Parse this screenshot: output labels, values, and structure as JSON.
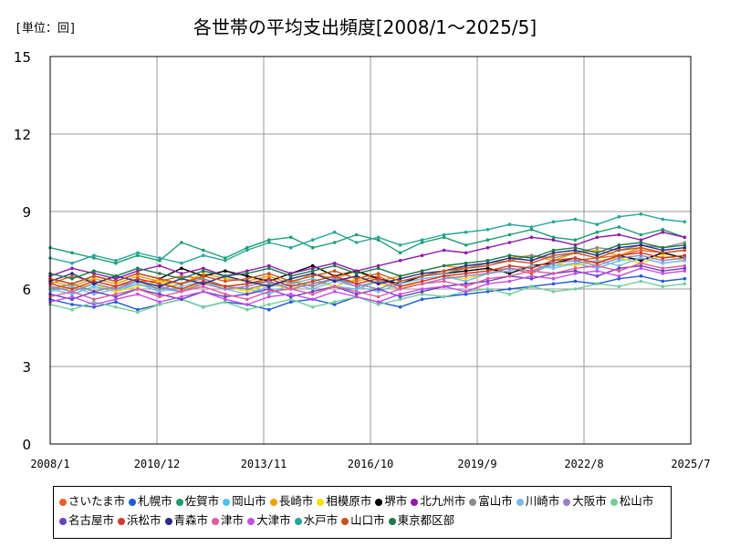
{
  "unit_label": "[単位：回]",
  "chart_data": {
    "type": "line",
    "title": "各世帯の平均支出頻度[2008/1～2025/5]",
    "xlabel": "",
    "ylabel": "",
    "ylim": [
      0,
      15
    ],
    "yticks": [
      0,
      3,
      6,
      9,
      12,
      15
    ],
    "x_range": [
      "2008/1",
      "2025/7"
    ],
    "xticks": [
      "2008/1",
      "2010/12",
      "2013/11",
      "2016/10",
      "2019/9",
      "2022/8",
      "2025/7"
    ],
    "grid": true,
    "legend_position": "bottom",
    "x_granularity": "monthly",
    "series": [
      {
        "name": "さいたま市",
        "color": "#e8622a",
        "values": [
          6.2,
          6.5,
          6.3,
          6.1,
          6.3,
          6.3,
          6.5,
          6.4,
          6.1,
          6.2,
          6.3,
          6.0,
          6.2,
          6.4,
          6.3,
          6.5,
          6.1,
          6.3,
          6.5,
          6.6,
          6.7,
          6.8,
          6.6,
          7.0,
          7.1,
          7.2,
          7.3,
          7.5,
          7.4,
          7.2
        ]
      },
      {
        "name": "札幌市",
        "color": "#1f5bd6",
        "values": [
          5.6,
          5.4,
          5.3,
          5.5,
          5.2,
          5.4,
          5.6,
          5.3,
          5.5,
          5.4,
          5.2,
          5.5,
          5.6,
          5.4,
          5.7,
          5.5,
          5.3,
          5.6,
          5.7,
          5.8,
          5.9,
          6.0,
          6.1,
          6.2,
          6.3,
          6.2,
          6.4,
          6.5,
          6.3,
          6.4
        ]
      },
      {
        "name": "佐賀市",
        "color": "#1a9e6e",
        "values": [
          7.6,
          7.4,
          7.2,
          7.0,
          7.3,
          7.1,
          7.8,
          7.5,
          7.2,
          7.6,
          7.9,
          8.0,
          7.6,
          7.8,
          8.1,
          7.9,
          7.4,
          7.8,
          8.0,
          7.7,
          7.9,
          8.1,
          8.3,
          8.0,
          7.9,
          8.2,
          8.4,
          8.1,
          8.3,
          8.0
        ]
      },
      {
        "name": "岡山市",
        "color": "#4fc3e8",
        "values": [
          6.0,
          5.8,
          6.1,
          5.9,
          6.2,
          6.0,
          5.9,
          6.3,
          6.1,
          6.0,
          5.8,
          6.2,
          6.4,
          6.1,
          6.0,
          6.3,
          6.2,
          6.4,
          6.5,
          6.3,
          6.6,
          6.8,
          6.7,
          6.9,
          7.0,
          6.8,
          7.1,
          7.2,
          7.0,
          7.1
        ]
      },
      {
        "name": "長崎市",
        "color": "#f0a000",
        "values": [
          6.3,
          6.1,
          6.4,
          6.2,
          6.5,
          6.3,
          6.2,
          6.6,
          6.4,
          6.3,
          6.5,
          6.2,
          6.6,
          6.4,
          6.7,
          6.3,
          6.5,
          6.7,
          6.9,
          6.8,
          7.0,
          7.2,
          7.3,
          7.1,
          7.4,
          7.5,
          7.3,
          7.6,
          7.4,
          7.5
        ]
      },
      {
        "name": "相模原市",
        "color": "#f5e000",
        "values": [
          6.1,
          6.0,
          6.2,
          5.9,
          6.1,
          6.3,
          6.0,
          6.2,
          6.1,
          5.9,
          6.2,
          6.0,
          6.3,
          6.1,
          6.4,
          6.2,
          6.0,
          6.3,
          6.5,
          6.4,
          6.6,
          6.8,
          6.7,
          7.0,
          6.9,
          7.1,
          7.2,
          7.0,
          7.3,
          7.1
        ]
      },
      {
        "name": "堺市",
        "color": "#000000",
        "values": [
          6.4,
          6.2,
          6.5,
          6.3,
          6.6,
          6.4,
          6.8,
          6.5,
          6.7,
          6.5,
          6.3,
          6.6,
          6.9,
          6.5,
          6.7,
          6.4,
          6.2,
          6.5,
          6.6,
          6.7,
          6.8,
          6.6,
          6.9,
          7.0,
          7.2,
          7.0,
          7.3,
          7.1,
          7.4,
          7.2
        ]
      },
      {
        "name": "北九州市",
        "color": "#8e1aa8",
        "values": [
          6.5,
          6.8,
          6.6,
          6.4,
          6.7,
          6.9,
          6.6,
          6.8,
          6.5,
          6.7,
          6.9,
          6.6,
          6.8,
          7.0,
          6.7,
          6.9,
          7.1,
          7.3,
          7.5,
          7.4,
          7.6,
          7.8,
          8.0,
          7.9,
          7.7,
          8.0,
          8.1,
          7.9,
          8.2,
          8.0
        ]
      },
      {
        "name": "富山市",
        "color": "#8c8c8c",
        "values": [
          6.0,
          6.2,
          5.9,
          6.1,
          6.3,
          6.0,
          6.2,
          6.4,
          6.1,
          6.0,
          6.2,
          6.3,
          6.1,
          6.4,
          6.2,
          6.0,
          6.3,
          6.5,
          6.6,
          6.8,
          7.0,
          7.1,
          7.3,
          7.2,
          7.4,
          7.6,
          7.5,
          7.7,
          7.6,
          7.8
        ]
      },
      {
        "name": "川崎市",
        "color": "#7fb8e8",
        "values": [
          5.9,
          6.1,
          5.8,
          6.0,
          6.2,
          5.9,
          6.1,
          6.3,
          6.0,
          5.8,
          6.1,
          6.2,
          6.0,
          6.3,
          6.1,
          5.9,
          6.2,
          6.4,
          6.5,
          6.3,
          6.6,
          6.7,
          6.9,
          6.8,
          7.0,
          7.1,
          6.9,
          7.2,
          7.0,
          7.1
        ]
      },
      {
        "name": "大阪市",
        "color": "#9a7fc2",
        "values": [
          6.1,
          5.9,
          6.2,
          6.0,
          6.3,
          6.1,
          5.9,
          6.2,
          6.0,
          6.1,
          6.3,
          6.0,
          6.2,
          6.4,
          6.1,
          6.3,
          6.0,
          6.2,
          6.4,
          6.5,
          6.6,
          6.8,
          6.7,
          7.0,
          7.1,
          6.9,
          7.2,
          7.3,
          7.1,
          7.2
        ]
      },
      {
        "name": "松山市",
        "color": "#6fcf97",
        "values": [
          5.4,
          5.2,
          5.5,
          5.3,
          5.1,
          5.4,
          5.6,
          5.3,
          5.5,
          5.2,
          5.4,
          5.6,
          5.3,
          5.5,
          5.7,
          5.4,
          5.6,
          5.8,
          5.7,
          5.9,
          6.0,
          5.8,
          6.1,
          5.9,
          6.0,
          6.2,
          6.1,
          6.3,
          6.1,
          6.2
        ]
      },
      {
        "name": "名古屋市",
        "color": "#6a3fc9",
        "values": [
          5.8,
          5.6,
          5.9,
          5.7,
          6.0,
          5.8,
          5.6,
          5.9,
          5.7,
          5.8,
          6.0,
          5.7,
          5.9,
          6.1,
          5.8,
          6.0,
          5.7,
          5.9,
          6.1,
          6.2,
          6.3,
          6.5,
          6.4,
          6.6,
          6.7,
          6.5,
          6.8,
          6.9,
          6.7,
          6.8
        ]
      },
      {
        "name": "浜松市",
        "color": "#d13b2e",
        "values": [
          6.2,
          6.0,
          6.3,
          6.1,
          6.4,
          6.2,
          6.0,
          6.3,
          6.1,
          6.2,
          6.4,
          6.1,
          6.3,
          6.5,
          6.2,
          6.4,
          6.1,
          6.3,
          6.5,
          6.6,
          6.7,
          6.9,
          6.8,
          7.1,
          7.2,
          7.0,
          7.3,
          7.4,
          7.2,
          7.3
        ]
      },
      {
        "name": "青森市",
        "color": "#2a2a8c",
        "values": [
          6.3,
          6.6,
          6.2,
          6.5,
          6.3,
          6.1,
          6.4,
          6.2,
          6.5,
          6.3,
          6.1,
          6.4,
          6.6,
          6.3,
          6.5,
          6.2,
          6.4,
          6.6,
          6.7,
          6.9,
          7.0,
          7.2,
          7.1,
          7.4,
          7.5,
          7.3,
          7.6,
          7.7,
          7.5,
          7.6
        ]
      },
      {
        "name": "津市",
        "color": "#e05aa0",
        "values": [
          5.7,
          5.9,
          5.6,
          5.8,
          6.0,
          5.7,
          5.9,
          6.1,
          5.8,
          5.6,
          5.9,
          6.0,
          5.8,
          6.1,
          5.9,
          5.7,
          6.0,
          6.2,
          6.3,
          6.1,
          6.4,
          6.5,
          6.7,
          6.6,
          6.8,
          6.9,
          6.7,
          7.0,
          6.8,
          6.9
        ]
      },
      {
        "name": "大津市",
        "color": "#c44fe8",
        "values": [
          5.5,
          5.7,
          5.4,
          5.6,
          5.8,
          5.5,
          5.7,
          5.9,
          5.6,
          5.4,
          5.7,
          5.8,
          5.6,
          5.9,
          5.7,
          5.5,
          5.8,
          6.0,
          6.1,
          5.9,
          6.2,
          6.3,
          6.5,
          6.4,
          6.6,
          6.7,
          6.5,
          6.8,
          6.6,
          6.7
        ]
      },
      {
        "name": "水戸市",
        "color": "#26a69a",
        "values": [
          7.2,
          7.0,
          7.3,
          7.1,
          7.4,
          7.2,
          7.0,
          7.3,
          7.1,
          7.5,
          7.8,
          7.6,
          7.9,
          8.2,
          7.8,
          8.0,
          7.7,
          7.9,
          8.1,
          8.2,
          8.3,
          8.5,
          8.4,
          8.6,
          8.7,
          8.5,
          8.8,
          8.9,
          8.7,
          8.6
        ]
      },
      {
        "name": "山口市",
        "color": "#c8521f",
        "values": [
          6.4,
          6.2,
          6.5,
          6.3,
          6.6,
          6.4,
          6.2,
          6.5,
          6.3,
          6.4,
          6.6,
          6.3,
          6.5,
          6.7,
          6.4,
          6.6,
          6.3,
          6.5,
          6.7,
          6.8,
          6.9,
          7.1,
          7.0,
          7.3,
          7.4,
          7.2,
          7.5,
          7.6,
          7.4,
          7.5
        ]
      },
      {
        "name": "東京都区部",
        "color": "#1b7a4a",
        "values": [
          6.6,
          6.4,
          6.7,
          6.5,
          6.8,
          6.6,
          6.4,
          6.7,
          6.5,
          6.6,
          6.8,
          6.5,
          6.7,
          6.9,
          6.6,
          6.8,
          6.5,
          6.7,
          6.9,
          7.0,
          7.1,
          7.3,
          7.2,
          7.5,
          7.6,
          7.4,
          7.7,
          7.8,
          7.6,
          7.7
        ]
      }
    ]
  }
}
